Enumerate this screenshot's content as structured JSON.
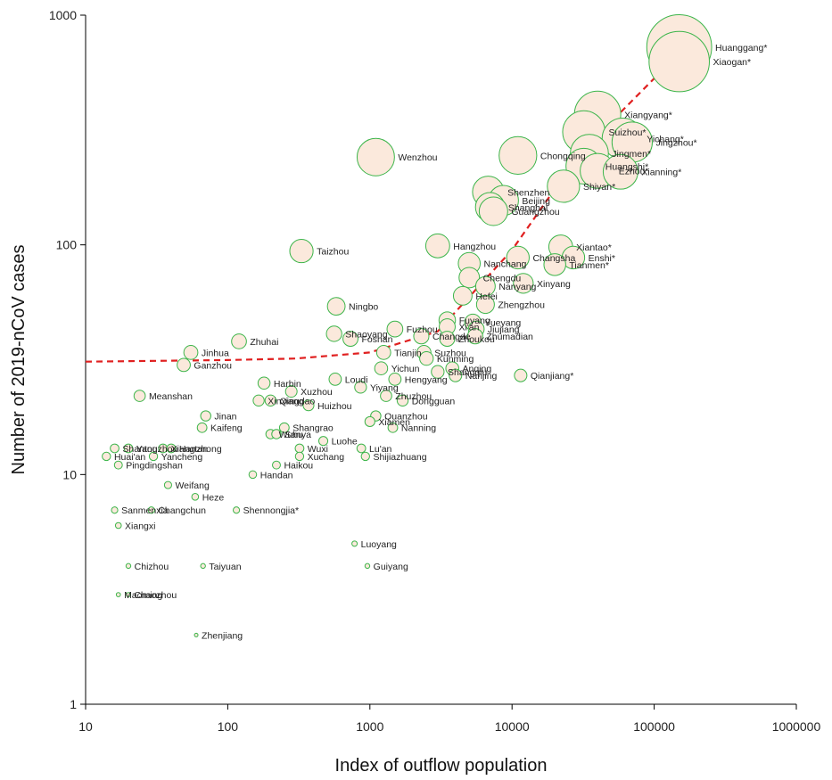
{
  "chart_data": {
    "type": "scatter",
    "xlabel": "Index of outflow population",
    "ylabel": "Number of 2019-nCoV cases",
    "x_scale": "log",
    "y_scale": "log",
    "xlim": [
      10,
      1000000
    ],
    "ylim": [
      1,
      1000
    ],
    "x_ticks": [
      "10",
      "100",
      "1000",
      "10000",
      "100000",
      "1000000"
    ],
    "y_ticks": [
      "1",
      "10",
      "100",
      "1000"
    ],
    "marker_fill": "#fbe9dc",
    "marker_stroke": "#3cb54a",
    "trend_color": "#e02020",
    "trend_style": "dashed",
    "trend_points": [
      [
        10,
        31
      ],
      [
        100,
        31.5
      ],
      [
        300,
        32
      ],
      [
        1000,
        34
      ],
      [
        3000,
        42
      ],
      [
        10000,
        95
      ],
      [
        30000,
        250
      ],
      [
        100000,
        530
      ],
      [
        150000,
        700
      ]
    ],
    "points": [
      {
        "label": "Huanggang*",
        "x": 150000,
        "y": 726
      },
      {
        "label": "Xiaogan*",
        "x": 150000,
        "y": 628
      },
      {
        "label": "Xiangyang*",
        "x": 40000,
        "y": 370
      },
      {
        "label": "Suizhou*",
        "x": 32000,
        "y": 310
      },
      {
        "label": "Yichang*",
        "x": 60000,
        "y": 290
      },
      {
        "label": "Jingzhou*",
        "x": 70000,
        "y": 280
      },
      {
        "label": "Jingmen*",
        "x": 35000,
        "y": 250
      },
      {
        "label": "Chongqing",
        "x": 11000,
        "y": 245
      },
      {
        "label": "Wenzhou",
        "x": 1100,
        "y": 241
      },
      {
        "label": "Huangshi*",
        "x": 32000,
        "y": 220
      },
      {
        "label": "Ezhou*",
        "x": 40000,
        "y": 210
      },
      {
        "label": "Xianning*",
        "x": 58000,
        "y": 208
      },
      {
        "label": "Shiyan*",
        "x": 23000,
        "y": 180
      },
      {
        "label": "Shenzhen",
        "x": 6800,
        "y": 170
      },
      {
        "label": "Shanghai",
        "x": 7000,
        "y": 146
      },
      {
        "label": "Beijing",
        "x": 8700,
        "y": 156
      },
      {
        "label": "Guangzhou",
        "x": 7400,
        "y": 140
      },
      {
        "label": "Taizhou",
        "x": 330,
        "y": 94
      },
      {
        "label": "Hangzhou",
        "x": 3000,
        "y": 99
      },
      {
        "label": "Changsha",
        "x": 11000,
        "y": 88
      },
      {
        "label": "Xiantao*",
        "x": 22000,
        "y": 98
      },
      {
        "label": "Enshi*",
        "x": 27000,
        "y": 88
      },
      {
        "label": "Tianmen*",
        "x": 20000,
        "y": 82
      },
      {
        "label": "Nanchang",
        "x": 5000,
        "y": 83
      },
      {
        "label": "Chengdu",
        "x": 5000,
        "y": 72
      },
      {
        "label": "Nanyang",
        "x": 6500,
        "y": 66
      },
      {
        "label": "Xinyang",
        "x": 12000,
        "y": 68
      },
      {
        "label": "Hefei",
        "x": 4500,
        "y": 60
      },
      {
        "label": "Zhengzhou",
        "x": 6500,
        "y": 55
      },
      {
        "label": "Ningbo",
        "x": 580,
        "y": 54
      },
      {
        "label": "Yueyang",
        "x": 5300,
        "y": 46
      },
      {
        "label": "Fuyang",
        "x": 3500,
        "y": 47
      },
      {
        "label": "Xi'an",
        "x": 3500,
        "y": 44
      },
      {
        "label": "Jiujiang",
        "x": 5600,
        "y": 43
      },
      {
        "label": "Zhumadian",
        "x": 5500,
        "y": 40
      },
      {
        "label": "Shaoyang",
        "x": 560,
        "y": 41
      },
      {
        "label": "Fuzhou",
        "x": 1500,
        "y": 43
      },
      {
        "label": "Changde",
        "x": 2300,
        "y": 40
      },
      {
        "label": "Foshan",
        "x": 730,
        "y": 39
      },
      {
        "label": "Zhoukou",
        "x": 3500,
        "y": 39
      },
      {
        "label": "Zhuhai",
        "x": 120,
        "y": 38
      },
      {
        "label": "Suzhou",
        "x": 2400,
        "y": 34
      },
      {
        "label": "Kunming",
        "x": 2500,
        "y": 32
      },
      {
        "label": "Jinhua",
        "x": 55,
        "y": 34
      },
      {
        "label": "Tianjin",
        "x": 1250,
        "y": 34
      },
      {
        "label": "Ganzhou",
        "x": 49,
        "y": 30
      },
      {
        "label": "Anqing",
        "x": 3800,
        "y": 29
      },
      {
        "label": "Yichun",
        "x": 1200,
        "y": 29
      },
      {
        "label": "Shangqiu",
        "x": 3000,
        "y": 28
      },
      {
        "label": "Nanjing",
        "x": 4000,
        "y": 27
      },
      {
        "label": "Qianjiang*",
        "x": 11500,
        "y": 27
      },
      {
        "label": "Harbin",
        "x": 180,
        "y": 25
      },
      {
        "label": "Loudi",
        "x": 570,
        "y": 26
      },
      {
        "label": "Hengyang",
        "x": 1500,
        "y": 26
      },
      {
        "label": "Qingdao",
        "x": 200,
        "y": 21
      },
      {
        "label": "Xuzhou",
        "x": 280,
        "y": 23
      },
      {
        "label": "Yiyang",
        "x": 860,
        "y": 24
      },
      {
        "label": "Meanshan",
        "x": 24,
        "y": 22
      },
      {
        "label": "Zhuzhou",
        "x": 1300,
        "y": 22
      },
      {
        "label": "Dongguan",
        "x": 1700,
        "y": 21
      },
      {
        "label": "Huizhou",
        "x": 370,
        "y": 20
      },
      {
        "label": "Xinxiang",
        "x": 165,
        "y": 21
      },
      {
        "label": "Jinan",
        "x": 70,
        "y": 18
      },
      {
        "label": "Quanzhou",
        "x": 1100,
        "y": 18
      },
      {
        "label": "Shangrao",
        "x": 250,
        "y": 16
      },
      {
        "label": "Xiamen",
        "x": 1000,
        "y": 17
      },
      {
        "label": "Nanning",
        "x": 1450,
        "y": 16
      },
      {
        "label": "Kaifeng",
        "x": 66,
        "y": 16
      },
      {
        "label": "Wuhu",
        "x": 200,
        "y": 15
      },
      {
        "label": "Sanya",
        "x": 220,
        "y": 15
      },
      {
        "label": "Luohe",
        "x": 470,
        "y": 14
      },
      {
        "label": "Shantou",
        "x": 16,
        "y": 13
      },
      {
        "label": "Yangzhou",
        "x": 20,
        "y": 13
      },
      {
        "label": "Xiangtan",
        "x": 35,
        "y": 13
      },
      {
        "label": "Hanzhong",
        "x": 40,
        "y": 13
      },
      {
        "label": "Wuxi",
        "x": 320,
        "y": 13
      },
      {
        "label": "Lu'an",
        "x": 870,
        "y": 13
      },
      {
        "label": "Huai'an",
        "x": 14,
        "y": 12
      },
      {
        "label": "Yancheng",
        "x": 30,
        "y": 12
      },
      {
        "label": "Xuchang",
        "x": 320,
        "y": 12
      },
      {
        "label": "Shijiazhuang",
        "x": 930,
        "y": 12
      },
      {
        "label": "Pingdingshan",
        "x": 17,
        "y": 11
      },
      {
        "label": "Handan",
        "x": 150,
        "y": 10
      },
      {
        "label": "Haikou",
        "x": 220,
        "y": 11
      },
      {
        "label": "Weifang",
        "x": 38,
        "y": 9
      },
      {
        "label": "Heze",
        "x": 59,
        "y": 8
      },
      {
        "label": "Sanmenxia",
        "x": 16,
        "y": 7
      },
      {
        "label": "Changchun",
        "x": 29,
        "y": 7
      },
      {
        "label": "Shennongjia*",
        "x": 115,
        "y": 7
      },
      {
        "label": "Xiangxi",
        "x": 17,
        "y": 6
      },
      {
        "label": "Luoyang",
        "x": 780,
        "y": 5
      },
      {
        "label": "Chizhou",
        "x": 20,
        "y": 4
      },
      {
        "label": "Taiyuan",
        "x": 67,
        "y": 4
      },
      {
        "label": "Guiyang",
        "x": 960,
        "y": 4
      },
      {
        "label": "Maoming",
        "x": 17,
        "y": 3
      },
      {
        "label": "Chaozhou",
        "x": 20,
        "y": 3
      },
      {
        "label": "Zhenjiang",
        "x": 60,
        "y": 2
      }
    ]
  }
}
